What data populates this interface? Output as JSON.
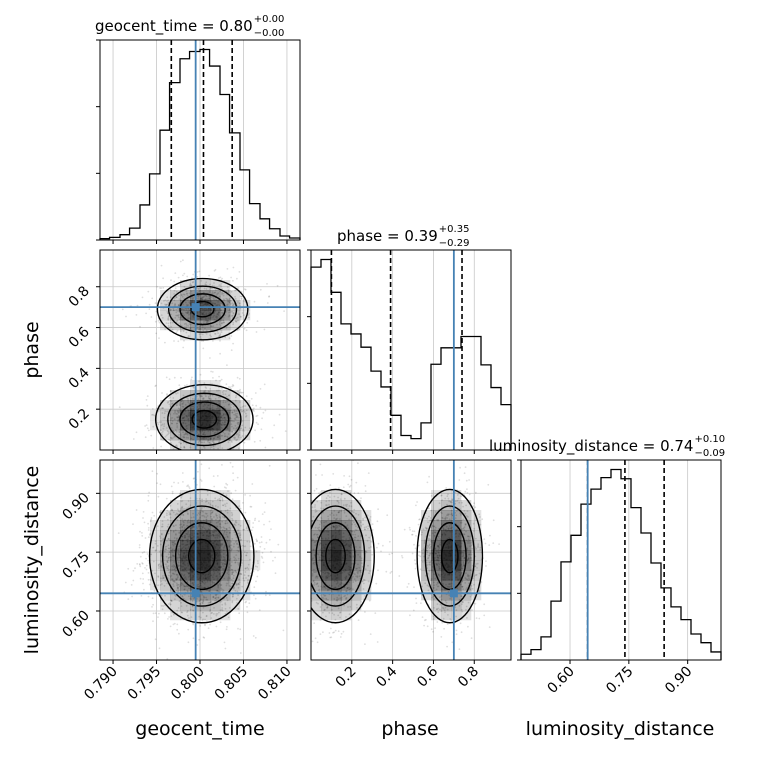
{
  "chart_data": {
    "type": "corner",
    "parameters": [
      "geocent_time",
      "phase",
      "luminosity_distance"
    ],
    "truths": [
      0.7995,
      0.7,
      0.645
    ],
    "truth_color": "#4682b4",
    "grid": true,
    "titles": [
      {
        "name": "geocent_time",
        "median": "0.80",
        "plus": "+0.00",
        "minus": "−0.00"
      },
      {
        "name": "phase",
        "median": "0.39",
        "plus": "+0.35",
        "minus": "−0.29"
      },
      {
        "name": "luminosity_distance",
        "median": "0.74",
        "plus": "+0.10",
        "minus": "−0.09"
      }
    ],
    "ranges": [
      [
        0.7885,
        0.8115
      ],
      [
        0.0,
        0.98
      ],
      [
        0.475,
        0.985
      ]
    ],
    "ticks": [
      [
        0.79,
        0.795,
        0.8,
        0.805,
        0.81
      ],
      [
        0.2,
        0.4,
        0.6,
        0.8
      ],
      [
        0.6,
        0.75,
        0.9
      ]
    ],
    "tick_labels": [
      [
        "0.790",
        "0.795",
        "0.800",
        "0.805",
        "0.810"
      ],
      [
        "0.2",
        "0.4",
        "0.6",
        "0.8"
      ],
      [
        "0.60",
        "0.75",
        "0.90"
      ]
    ],
    "histograms": [
      {
        "quantiles": [
          0.7967,
          0.8004,
          0.8037
        ],
        "edges": [
          0.7885,
          0.7896,
          0.7908,
          0.7919,
          0.7931,
          0.7942,
          0.7954,
          0.7965,
          0.7977,
          0.7988,
          0.8,
          0.8011,
          0.8023,
          0.8034,
          0.8046,
          0.8057,
          0.8069,
          0.808,
          0.8092,
          0.8103,
          0.8115
        ],
        "counts": [
          2,
          4,
          8,
          18,
          53,
          100,
          166,
          238,
          274,
          285,
          288,
          263,
          220,
          162,
          106,
          55,
          32,
          17,
          6,
          3
        ]
      },
      {
        "quantiles": [
          0.1,
          0.39,
          0.74
        ],
        "edges": [
          0.0,
          0.049,
          0.098,
          0.147,
          0.196,
          0.245,
          0.294,
          0.343,
          0.392,
          0.441,
          0.49,
          0.539,
          0.588,
          0.637,
          0.686,
          0.735,
          0.784,
          0.833,
          0.882,
          0.931,
          0.98
        ],
        "counts": [
          290,
          302,
          250,
          200,
          184,
          163,
          125,
          100,
          55,
          23,
          18,
          43,
          136,
          162,
          162,
          180,
          180,
          135,
          99,
          72
        ]
      },
      {
        "quantiles": [
          0.645,
          0.74,
          0.84
        ],
        "edges": [
          0.475,
          0.5005,
          0.526,
          0.5515,
          0.577,
          0.6025,
          0.628,
          0.6535,
          0.679,
          0.7045,
          0.73,
          0.7555,
          0.781,
          0.8065,
          0.832,
          0.8575,
          0.883,
          0.9085,
          0.934,
          0.9595,
          0.985
        ],
        "counts": [
          10,
          18,
          40,
          102,
          170,
          216,
          270,
          296,
          316,
          330,
          314,
          264,
          220,
          168,
          125,
          92,
          70,
          45,
          30,
          14
        ]
      }
    ],
    "posteriors_2d": [
      {
        "x": "geocent_time",
        "y": "phase",
        "modes": [
          {
            "mx": 0.8003,
            "my": 0.69,
            "sx": 0.0026,
            "sy": 0.075,
            "weight": 0.45
          },
          {
            "mx": 0.8005,
            "my": 0.15,
            "sx": 0.0028,
            "sy": 0.085,
            "weight": 0.55
          }
        ]
      },
      {
        "x": "geocent_time",
        "y": "luminosity_distance",
        "modes": [
          {
            "mx": 0.8002,
            "my": 0.74,
            "sx": 0.003,
            "sy": 0.085,
            "weight": 1.0
          }
        ]
      },
      {
        "x": "phase",
        "y": "luminosity_distance",
        "modes": [
          {
            "mx": 0.12,
            "my": 0.74,
            "sx": 0.095,
            "sy": 0.085,
            "weight": 0.5
          },
          {
            "mx": 0.68,
            "my": 0.74,
            "sx": 0.08,
            "sy": 0.085,
            "weight": 0.5
          }
        ]
      }
    ]
  }
}
